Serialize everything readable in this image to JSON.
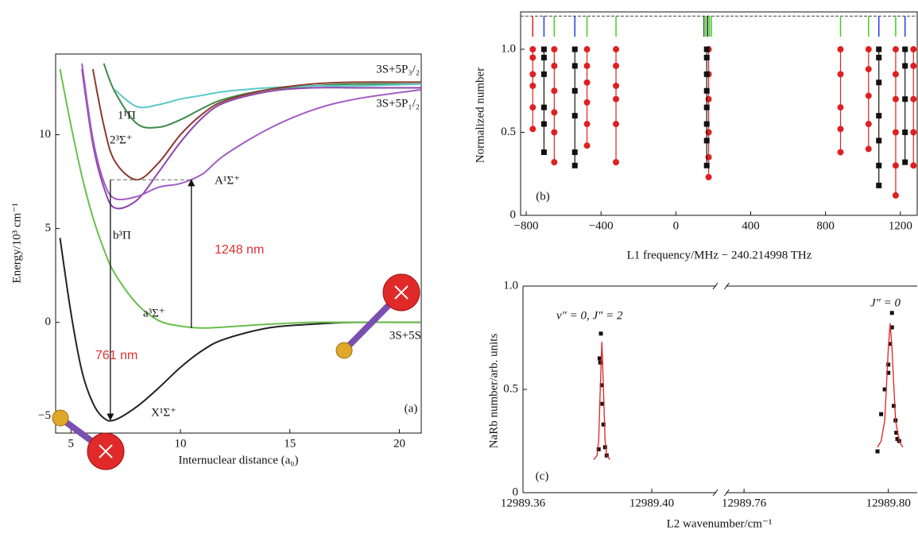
{
  "chart_data": [
    {
      "type": "line",
      "panel": "(a)",
      "xlabel": "Internuclear distance (a₀)",
      "ylabel": "Energy/10³ cm⁻¹",
      "xlim": [
        4.3,
        21
      ],
      "ylim": [
        -5.9,
        14.3
      ],
      "xticks": [
        5,
        10,
        15,
        20
      ],
      "yticks": [
        {
          "value": -5,
          "label": "−5"
        },
        0,
        5,
        10
      ],
      "x": [
        4.5,
        5,
        5.5,
        6,
        6.5,
        7,
        8,
        9,
        10,
        11,
        12,
        14,
        16,
        18,
        21
      ],
      "series": [
        {
          "name": "X¹Σ⁺",
          "color": "#222222",
          "values": [
            4.5,
            0.5,
            -2.6,
            -4.3,
            -5.1,
            -5.2,
            -4.5,
            -3.5,
            -2.4,
            -1.5,
            -0.9,
            -0.3,
            -0.1,
            0,
            0
          ]
        },
        {
          "name": "a³Σ⁺",
          "color": "#6abf4b",
          "values": [
            13.5,
            10.5,
            7.8,
            5.6,
            3.9,
            2.6,
            1.0,
            0.1,
            -0.2,
            -0.3,
            -0.25,
            -0.1,
            0,
            0,
            0
          ]
        },
        {
          "name": "b³Π",
          "color": "#8e44ad",
          "values": [
            null,
            null,
            13.5,
            9.5,
            7.2,
            6.1,
            6.5,
            8.0,
            9.6,
            10.9,
            11.7,
            12.3,
            12.5,
            12.5,
            12.5
          ]
        },
        {
          "name": "A¹Σ⁺",
          "color": "#a35cc4",
          "values": [
            null,
            null,
            13.8,
            9.8,
            7.5,
            6.6,
            6.7,
            7.2,
            7.4,
            7.9,
            8.9,
            10.3,
            11.3,
            11.9,
            12.4
          ]
        },
        {
          "name": "2³Σ⁺",
          "color": "#3c8a4a",
          "values": [
            null,
            null,
            null,
            null,
            13.8,
            12.3,
            10.6,
            10.4,
            10.8,
            11.4,
            11.9,
            12.4,
            12.6,
            12.7,
            12.7
          ]
        },
        {
          "name": "1¹Π",
          "color": "#5bc8c8",
          "values": [
            null,
            null,
            null,
            null,
            null,
            12.4,
            11.5,
            11.6,
            11.9,
            12.1,
            12.3,
            12.5,
            12.6,
            12.6,
            12.7
          ]
        },
        {
          "color": "#8b3a2f",
          "values": [
            null,
            null,
            null,
            13.5,
            10.5,
            8.6,
            7.6,
            8.5,
            10.0,
            11.1,
            11.8,
            12.4,
            12.7,
            12.8,
            12.8
          ]
        }
      ],
      "arrows": [
        {
          "label": "761 nm",
          "x": 6.8,
          "y": [
            7.6,
            -5.2
          ]
        },
        {
          "label": "1248 nm",
          "x": 10.5,
          "y": [
            -0.3,
            7.6
          ]
        }
      ],
      "annotations": [
        "3S+5P₃/₂",
        "3S+5P₁/₂",
        "3S+5S"
      ]
    },
    {
      "type": "scatter",
      "panel": "(b)",
      "xlabel": "L1 frequency/MHz − 240.214998 THz",
      "ylabel": "Normalized number",
      "xlim": [
        -830,
        1290
      ],
      "ylim": [
        0,
        1.225
      ],
      "xticks": [
        {
          "value": -800,
          "label": "−800"
        },
        {
          "value": -400,
          "label": "−400"
        },
        0,
        400,
        800,
        1200
      ],
      "yticks": [
        0,
        0.5,
        {
          "value": 1,
          "label": "1.0"
        }
      ],
      "reference": 1.2,
      "markers": [
        {
          "x": -765,
          "color": "#e02020"
        },
        {
          "x": -705,
          "color": "#2040e0"
        },
        {
          "x": -650,
          "color": "#40d020"
        },
        {
          "x": -540,
          "color": "#2040e0"
        },
        {
          "x": -475,
          "color": "#40d020"
        },
        {
          "x": -320,
          "color": "#40d020"
        },
        {
          "x": 150,
          "color": "#206020"
        },
        {
          "x": 160,
          "color": "#40d020"
        },
        {
          "x": 170,
          "color": "#111111"
        },
        {
          "x": 180,
          "color": "#40d020"
        },
        {
          "x": 190,
          "color": "#40d020"
        },
        {
          "x": 880,
          "color": "#40d020"
        },
        {
          "x": 1030,
          "color": "#40d020"
        },
        {
          "x": 1085,
          "color": "#2040e0"
        },
        {
          "x": 1175,
          "color": "#40d020"
        },
        {
          "x": 1225,
          "color": "#2040e0"
        }
      ],
      "series": [
        {
          "color": "#e02020",
          "marker": "circle",
          "x": [
            -765,
            -765,
            -765,
            -765,
            -765,
            -765,
            -650,
            -650,
            -650,
            -650,
            -650,
            -650,
            -475,
            -475,
            -475,
            -475,
            -475,
            -475,
            -320,
            -320,
            -320,
            -320,
            -320,
            -320,
            175,
            175,
            175,
            175,
            175,
            175,
            880,
            880,
            880,
            880,
            880,
            1030,
            1030,
            1030,
            1030,
            1030,
            1175,
            1175,
            1175,
            1175,
            1175,
            1175,
            1270,
            1270,
            1270,
            1270,
            1270
          ],
          "values": [
            0.52,
            0.65,
            0.78,
            0.85,
            0.95,
            1.0,
            0.32,
            0.5,
            0.62,
            0.75,
            0.9,
            1.0,
            0.42,
            0.55,
            0.68,
            0.8,
            0.9,
            1.0,
            0.32,
            0.55,
            0.7,
            0.78,
            0.9,
            1.0,
            0.23,
            0.35,
            0.5,
            0.7,
            0.85,
            1.0,
            0.38,
            0.52,
            0.65,
            0.85,
            1.0,
            0.4,
            0.55,
            0.72,
            0.88,
            1.0,
            0.12,
            0.3,
            0.5,
            0.7,
            0.85,
            1.0,
            0.3,
            0.5,
            0.7,
            0.9,
            1.0
          ]
        },
        {
          "color": "#111111",
          "marker": "square",
          "x": [
            -705,
            -705,
            -705,
            -705,
            -705,
            -705,
            -540,
            -540,
            -540,
            -540,
            -540,
            -540,
            165,
            165,
            165,
            165,
            165,
            165,
            165,
            165,
            1085,
            1085,
            1085,
            1085,
            1085,
            1085,
            1085,
            1225,
            1225,
            1225,
            1225,
            1225
          ],
          "values": [
            0.38,
            0.55,
            0.65,
            0.85,
            0.95,
            1.0,
            0.3,
            0.38,
            0.6,
            0.75,
            0.9,
            1.0,
            0.3,
            0.45,
            0.55,
            0.65,
            0.75,
            0.85,
            0.95,
            1.0,
            0.18,
            0.3,
            0.45,
            0.6,
            0.8,
            0.95,
            1.0,
            0.32,
            0.5,
            0.7,
            0.9,
            1.0
          ]
        }
      ]
    },
    {
      "type": "scatter",
      "panel": "(c)",
      "xlabel": "L2 wavenumber/cm⁻¹",
      "ylabel": "NaRb number/arb. units",
      "xlim": [
        12989.36,
        12989.808
      ],
      "axis_break": [
        12989.42,
        12989.755
      ],
      "ylim": [
        0,
        1
      ],
      "xticks": [
        12989.36,
        {
          "value": 12989.4,
          "label": "12989.40"
        },
        12989.76,
        {
          "value": 12989.8,
          "label": "12989.80"
        }
      ],
      "yticks": [
        0,
        0.5,
        {
          "value": 1,
          "label": "1.0"
        }
      ],
      "annotations": [
        "v″ = 0, J″ = 2",
        "J″ = 0"
      ],
      "series": [
        {
          "color": "#111111",
          "marker": "square",
          "x": [
            12989.3835,
            12989.3838,
            12989.384,
            12989.3842,
            12989.3845,
            12989.3847,
            12989.385,
            12989.3855,
            12989.386,
            12989.797,
            12989.798,
            12989.799,
            12989.8,
            12989.8,
            12989.8005,
            12989.801,
            12989.801,
            12989.8015,
            12989.802,
            12989.8022,
            12989.8025,
            12989.803
          ],
          "values": [
            0.21,
            0.65,
            0.63,
            0.77,
            0.52,
            0.43,
            0.33,
            0.22,
            0.18,
            0.2,
            0.38,
            0.5,
            0.62,
            0.58,
            0.72,
            0.87,
            0.8,
            0.42,
            0.35,
            0.29,
            0.26,
            0.25
          ]
        },
        {
          "color": "#e02020",
          "mode": "line",
          "x": [
            12989.382,
            12989.383,
            12989.3835,
            12989.384,
            12989.3845,
            12989.385,
            12989.3855,
            12989.386,
            12989.387,
            null,
            12989.797,
            12989.798,
            12989.799,
            12989.8,
            12989.8005,
            12989.801,
            12989.802,
            12989.803,
            12989.804
          ],
          "values": [
            0.16,
            0.18,
            0.25,
            0.5,
            0.73,
            0.5,
            0.25,
            0.18,
            0.16,
            null,
            0.22,
            0.25,
            0.35,
            0.7,
            0.82,
            0.7,
            0.35,
            0.25,
            0.22
          ]
        }
      ]
    }
  ]
}
